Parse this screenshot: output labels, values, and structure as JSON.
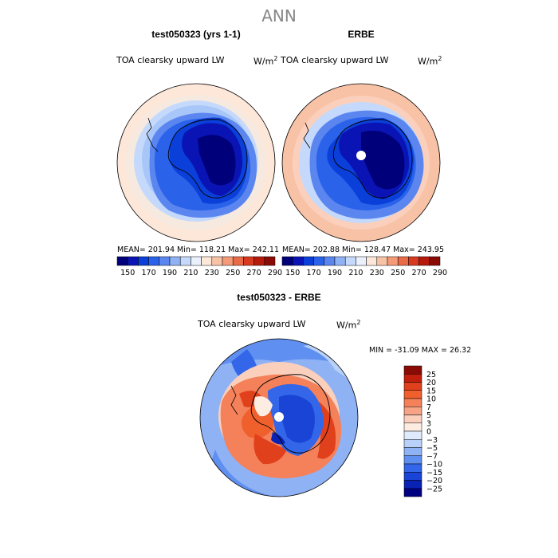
{
  "title": "ANN",
  "panels": [
    {
      "title": "test050323 (yrs 1-1)",
      "field": "TOA clearsky upward LW",
      "units": "W/m",
      "units_exp": "2",
      "stats": "MEAN= 201.94  Min= 118.21  Max= 242.11"
    },
    {
      "title": "ERBE",
      "field": "TOA clearsky upward LW",
      "units": "W/m",
      "units_exp": "2",
      "stats": "MEAN= 202.88  Min= 128.47  Max= 243.95"
    }
  ],
  "colorbar_h": {
    "colors": [
      "#00007a",
      "#0a14b4",
      "#0b3fd9",
      "#2a62ea",
      "#5b86f0",
      "#8fb2f5",
      "#c4d9fb",
      "#eaf1fd",
      "#fde7d9",
      "#f8c2a6",
      "#f39a78",
      "#e86a47",
      "#d83a1f",
      "#b51a0d",
      "#8a0a05"
    ],
    "labels": [
      "150",
      "170",
      "190",
      "210",
      "230",
      "250",
      "270",
      "290"
    ]
  },
  "diff": {
    "title": "test050323 - ERBE",
    "field": "TOA clearsky upward LW",
    "units": "W/m",
    "units_exp": "2",
    "minmax": "MIN = -31.09 MAX =  26.32"
  },
  "colorbar_v": {
    "colors": [
      "#8a0a05",
      "#c21e0d",
      "#e0401c",
      "#f0602d",
      "#f4815a",
      "#f7a386",
      "#fad0bd",
      "#fdece2",
      "#dfeafc",
      "#b9d0f8",
      "#8fb2f5",
      "#5f8ff0",
      "#3366e8",
      "#1a44d6",
      "#0a22b4",
      "#000080"
    ],
    "labels": [
      "25",
      "20",
      "15",
      "10",
      "7",
      "5",
      "3",
      "0",
      "-3",
      "-5",
      "-7",
      "-10",
      "-15",
      "-20",
      "-25"
    ]
  }
}
